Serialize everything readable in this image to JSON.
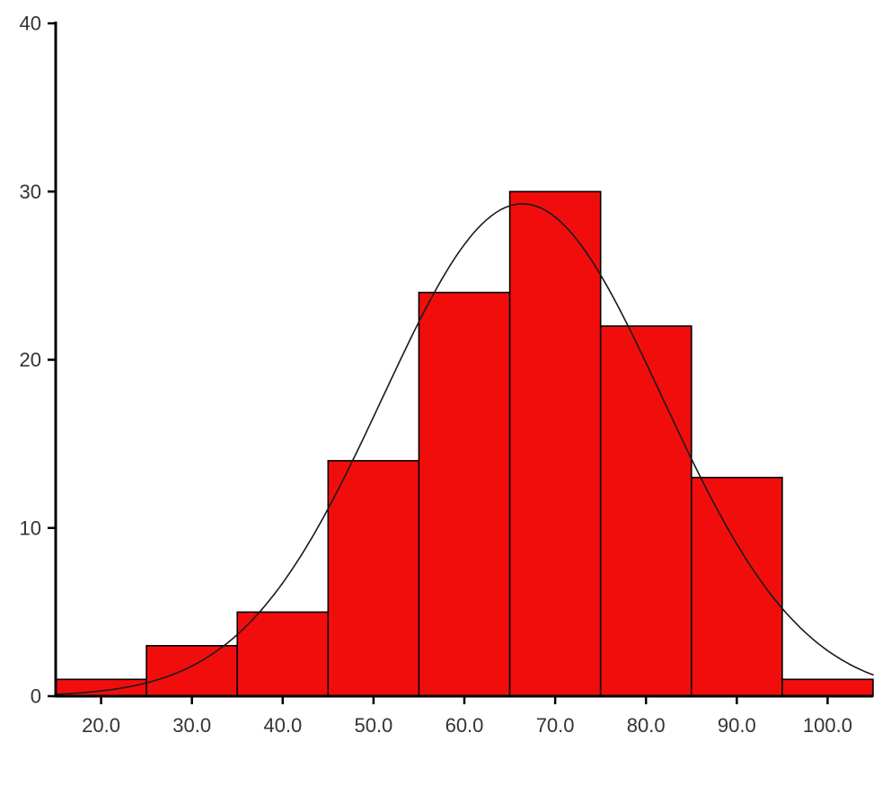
{
  "chart_data": {
    "type": "bar",
    "subtype": "histogram_with_normal_curve",
    "title": "",
    "xlabel": "",
    "ylabel": "",
    "bin_centers": [
      20,
      30,
      40,
      50,
      60,
      70,
      80,
      90,
      100
    ],
    "bin_width": 10,
    "counts": [
      1,
      3,
      5,
      14,
      24,
      30,
      22,
      13,
      1
    ],
    "x_tick_values": [
      20,
      30,
      40,
      50,
      60,
      70,
      80,
      90,
      100
    ],
    "x_tick_labels": [
      "20.0",
      "30.0",
      "40.0",
      "50.0",
      "60.0",
      "70.0",
      "80.0",
      "90.0",
      "100.0"
    ],
    "y_tick_values": [
      0,
      10,
      20,
      30,
      40
    ],
    "y_tick_labels": [
      "0",
      "10",
      "20",
      "30",
      "40"
    ],
    "xlim": [
      15,
      105
    ],
    "ylim": [
      0,
      40
    ],
    "grid": false,
    "legend": null,
    "normal_curve": {
      "mean": 66.4,
      "sd": 15.4,
      "n": 113
    },
    "colors": {
      "bar_fill": "#f20d0d",
      "bar_stroke": "#000000",
      "curve": "#1a1a1a",
      "axis": "#000000",
      "background": "#ffffff",
      "tick_label": "#333333"
    }
  }
}
